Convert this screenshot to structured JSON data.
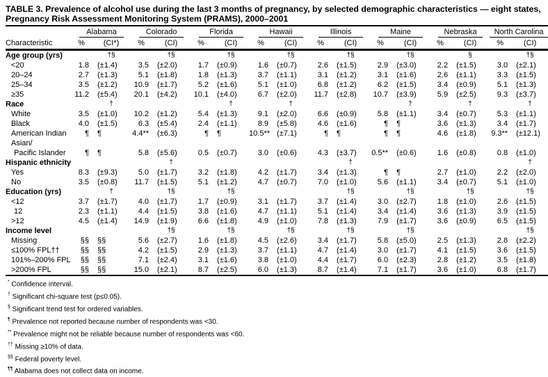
{
  "title": "TABLE 3. Prevalence of alcohol use during the last 3 months of pregnancy, by selected demographic characteristics — eight states, Pregnancy Risk Assessment Monitoring System (PRAMS), 2000–2001",
  "states": [
    "Alabama",
    "Colorado",
    "Florida",
    "Hawaii",
    "Illinois",
    "Maine",
    "Nebraska",
    "North Carolina"
  ],
  "col_headers": {
    "characteristic": "Characteristic",
    "pct": "%",
    "ci_first": "(CI*)",
    "ci": "(CI)"
  },
  "sections": [
    {
      "label": "Age group (yrs)",
      "sig": [
        "†§",
        "†§",
        "†§",
        "†§",
        "†§",
        "†§",
        "§",
        "†§"
      ],
      "rows": [
        {
          "label": "<20",
          "v": [
            "1.8",
            "(±1.4)",
            "3.5",
            "(±2.0)",
            "1.7",
            "(±0.9)",
            "1.6",
            "(±0.7)",
            "2.6",
            "(±1.5)",
            "2.9",
            "(±3.0)",
            "2.2",
            "(±1.5)",
            "3.0",
            "(±2.1)"
          ]
        },
        {
          "label": "20–24",
          "v": [
            "2.7",
            "(±1.3)",
            "5.1",
            "(±1.8)",
            "1.8",
            "(±1.3)",
            "3.7",
            "(±1.1)",
            "3.1",
            "(±1.2)",
            "3.1",
            "(±1.6)",
            "2.6",
            "(±1.1)",
            "3.3",
            "(±1.5)"
          ]
        },
        {
          "label": "25–34",
          "v": [
            "3.5",
            "(±1.2)",
            "10.9",
            "(±1.7)",
            "5.2",
            "(±1.6)",
            "5.1",
            "(±1.0)",
            "6.8",
            "(±1.2)",
            "6.2",
            "(±1.5)",
            "3.4",
            "(±0.9)",
            "5.1",
            "(±1.3)"
          ]
        },
        {
          "label": "≥35",
          "v": [
            "11.2",
            "(±5.4)",
            "20.1",
            "(±4.2)",
            "10.1",
            "(±4.0)",
            "6.7",
            "(±2.0)",
            "11.7",
            "(±2.8)",
            "10.7",
            "(±3.9)",
            "5.9",
            "(±2.5)",
            "9.3",
            "(±3.7)"
          ]
        }
      ]
    },
    {
      "label": "Race",
      "sig": [
        "†",
        "",
        "†",
        "†",
        "",
        "†",
        "†",
        "†"
      ],
      "rows": [
        {
          "label": "White",
          "v": [
            "3.5",
            "(±1.0)",
            "10.2",
            "(±1.2)",
            "5.4",
            "(±1.3)",
            "9.1",
            "(±2.0)",
            "6.6",
            "(±0.9)",
            "5.8",
            "(±1.1)",
            "3.4",
            "(±0.7)",
            "5.3",
            "(±1.1)"
          ]
        },
        {
          "label": "Black",
          "v": [
            "4.0",
            "(±1.5)",
            "6.3",
            "(±5.4)",
            "2.4",
            "(±1.1)",
            "8.9",
            "(±5.8)",
            "4.6",
            "(±1.6)",
            "¶",
            "¶",
            "3.6",
            "(±1.3)",
            "3.4",
            "(±1.7)"
          ]
        },
        {
          "label": "American Indian",
          "v": [
            "¶",
            "¶",
            "4.4**",
            "(±6.3)",
            "¶",
            "¶",
            "10.5**",
            "(±7.1)",
            "¶",
            "¶",
            "¶",
            "¶",
            "4.6",
            "(±1.8)",
            "9.3**",
            "(±12.1)"
          ]
        },
        {
          "label": "Asian/",
          "v": []
        },
        {
          "label": "Pacific Islander",
          "sub": true,
          "v": [
            "¶",
            "¶",
            "5.8",
            "(±5.6)",
            "0.5",
            "(±0.7)",
            "3.0",
            "(±0.6)",
            "4.3",
            "(±3.7)",
            "0.5**",
            "(±0.6)",
            "1.6",
            "(±0.8)",
            "0.8",
            "(±1.0)"
          ]
        }
      ]
    },
    {
      "label": "Hispanic ethnicity",
      "sig": [
        "",
        "†",
        "",
        "",
        "†",
        "",
        "",
        "†"
      ],
      "rows": [
        {
          "label": "Yes",
          "v": [
            "8.3",
            "(±9.3)",
            "5.0",
            "(±1.7)",
            "3.2",
            "(±1.8)",
            "4.2",
            "(±1.7)",
            "3.4",
            "(±1.3)",
            "¶",
            "¶",
            "2.7",
            "(±1.0)",
            "2.2",
            "(±2.0)"
          ]
        },
        {
          "label": "No",
          "v": [
            "3.5",
            "(±0.8)",
            "11.7",
            "(±1.5)",
            "5.1",
            "(±1.2)",
            "4.7",
            "(±0.7)",
            "7.0",
            "(±1.0)",
            "5.6",
            "(±1.1)",
            "3.4",
            "(±0.7)",
            "5.1",
            "(±1.0)"
          ]
        }
      ]
    },
    {
      "label": "Education (yrs)",
      "sig": [
        "†",
        "†§",
        "†§",
        "",
        "†§",
        "†§",
        "†§",
        "†§"
      ],
      "rows": [
        {
          "label": "<12",
          "v": [
            "3.7",
            "(±1.7)",
            "4.0",
            "(±1.7)",
            "1.7",
            "(±0.9)",
            "3.1",
            "(±1.7)",
            "3.7",
            "(±1.4)",
            "3.0",
            "(±2.7)",
            "1.8",
            "(±1.0)",
            "2.6",
            "(±1.5)"
          ]
        },
        {
          "label": "12",
          "sub": true,
          "v": [
            "2.3",
            "(±1.1)",
            "4.4",
            "(±1.5)",
            "3.8",
            "(±1.6)",
            "4.7",
            "(±1.1)",
            "5.1",
            "(±1.4)",
            "3.4",
            "(±1.4)",
            "3.6",
            "(±1.3)",
            "3.9",
            "(±1.5)"
          ]
        },
        {
          "label": ">12",
          "v": [
            "4.5",
            "(±1.4)",
            "14.9",
            "(±1.9)",
            "6.6",
            "(±1.8)",
            "4.9",
            "(±1.0)",
            "7.8",
            "(±1.3)",
            "7.9",
            "(±1.7)",
            "3.6",
            "(±0.9)",
            "6.5",
            "(±1.5)"
          ]
        }
      ]
    },
    {
      "label": "Income level",
      "sig": [
        "",
        "†§",
        "†§",
        "†§",
        "†§",
        "†§",
        "",
        "†§"
      ],
      "rows": [
        {
          "label": "Missing",
          "v": [
            "§§",
            "§§",
            "5.6",
            "(±2.7)",
            "1.6",
            "(±1.8)",
            "4.5",
            "(±2.6)",
            "3.4",
            "(±1.7)",
            "5.8",
            "(±5.0)",
            "2.5",
            "(±1.3)",
            "2.8",
            "(±2.2)"
          ]
        },
        {
          "label": "≤100% FPL††",
          "v": [
            "§§",
            "§§",
            "4.2",
            "(±1.5)",
            "2.9",
            "(±1.3)",
            "3.7",
            "(±1.1)",
            "4.7",
            "(±1.4)",
            "3.0",
            "(±1.7)",
            "4.1",
            "(±1.5)",
            "3.6",
            "(±1.5)"
          ]
        },
        {
          "label": "101%–200% FPL",
          "v": [
            "§§",
            "§§",
            "7.1",
            "(±2.4)",
            "3.1",
            "(±1.6)",
            "3.8",
            "(±1.0)",
            "4.4",
            "(±1.7)",
            "6.0",
            "(±2.3)",
            "2.8",
            "(±1.2)",
            "3.5",
            "(±1.8)"
          ]
        },
        {
          "label": ">200% FPL",
          "v": [
            "§§",
            "§§",
            "15.0",
            "(±2.1)",
            "8.7",
            "(±2.5)",
            "6.0",
            "(±1.3)",
            "8.7",
            "(±1.4)",
            "7.1",
            "(±1.7)",
            "3.6",
            "(±1.0)",
            "6.8",
            "(±1.7)"
          ]
        }
      ]
    }
  ],
  "footnotes": [
    {
      "mark": "*",
      "text": "Confidence interval."
    },
    {
      "mark": "†",
      "text": "Significant chi-square test (p≤0.05)."
    },
    {
      "mark": "§",
      "text": "Significant trend test for ordered variables."
    },
    {
      "mark": "¶",
      "text": "Prevalence not reported because number of respondents was <30."
    },
    {
      "mark": "**",
      "text": "Prevalence might not be reliable because number of respondents was <60."
    },
    {
      "mark": "††",
      "text": "Missing ≥10% of data."
    },
    {
      "mark": "§§",
      "text": "Federal poverty level."
    },
    {
      "mark": "¶¶",
      "text": "Alabama does not collect data on income."
    }
  ]
}
